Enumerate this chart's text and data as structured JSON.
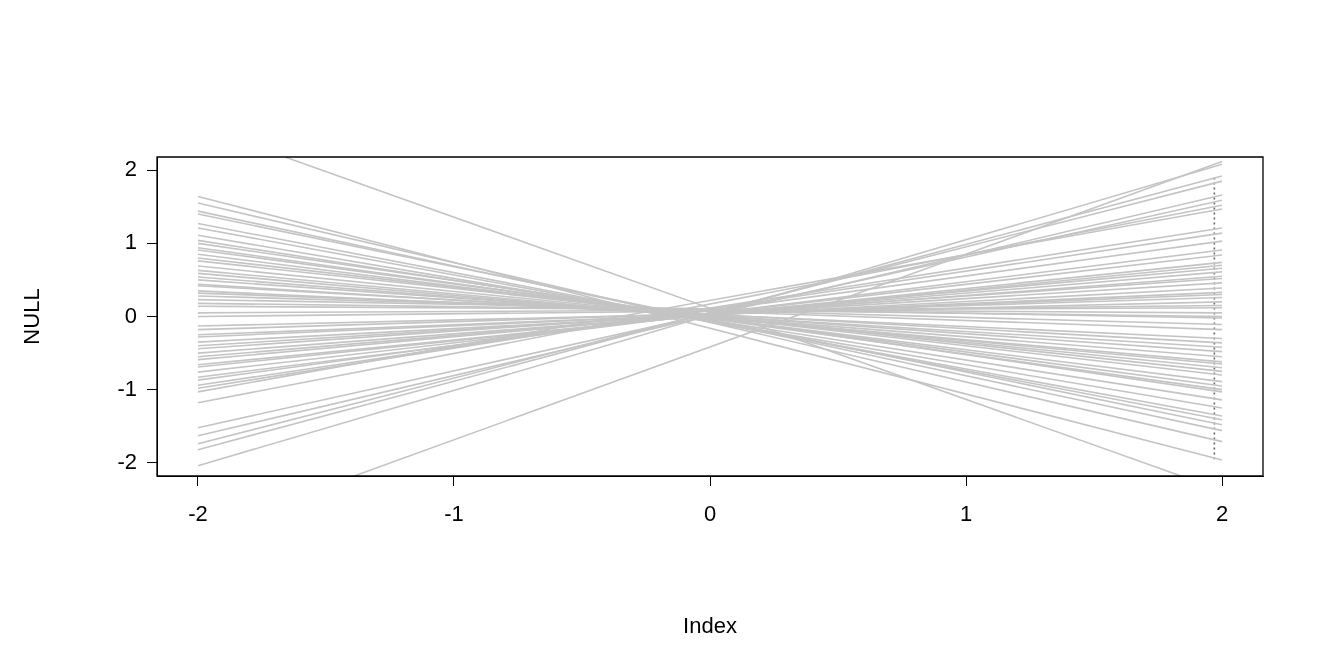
{
  "chart_data": {
    "type": "line",
    "xlabel": "Index",
    "ylabel": "NULL",
    "x": [
      -2,
      2
    ],
    "xlim": [
      -2.16,
      2.16
    ],
    "ylim": [
      -2.18,
      2.18
    ],
    "xticks": [
      -2,
      -1,
      0,
      1,
      2
    ],
    "yticks": [
      -2,
      -1,
      0,
      1,
      2
    ],
    "grid": false,
    "legend": false,
    "marker": "none",
    "line_style": "solid",
    "series": [
      {
        "color": "#c4c4c4",
        "values": [
          1.64,
          -1.96
        ]
      },
      {
        "color": "#c4c4c4",
        "values": [
          1.55,
          -1.71
        ]
      },
      {
        "color": "#c4c4c4",
        "values": [
          1.44,
          -1.56
        ]
      },
      {
        "color": "#c4c4c4",
        "values": [
          1.4,
          -1.48
        ]
      },
      {
        "color": "#c4c4c4",
        "values": [
          1.27,
          -1.41
        ]
      },
      {
        "color": "#c4c4c4",
        "values": [
          1.21,
          -1.36
        ]
      },
      {
        "color": "#c4c4c4",
        "values": [
          1.11,
          -1.25
        ]
      },
      {
        "color": "#c4c4c4",
        "values": [
          1.04,
          -1.14
        ]
      },
      {
        "color": "#c4c4c4",
        "values": [
          1.0,
          -1.03
        ]
      },
      {
        "color": "#c4c4c4",
        "values": [
          0.94,
          -1.0
        ]
      },
      {
        "color": "#c4c4c4",
        "values": [
          0.91,
          -0.95
        ]
      },
      {
        "color": "#c4c4c4",
        "values": [
          0.85,
          -0.89
        ]
      },
      {
        "color": "#c4c4c4",
        "values": [
          0.8,
          -0.8
        ]
      },
      {
        "color": "#c4c4c4",
        "values": [
          0.76,
          -0.75
        ]
      },
      {
        "color": "#c4c4c4",
        "values": [
          0.69,
          -0.7
        ]
      },
      {
        "color": "#c4c4c4",
        "values": [
          0.63,
          -0.65
        ]
      },
      {
        "color": "#c4c4c4",
        "values": [
          0.59,
          -0.62
        ]
      },
      {
        "color": "#c4c4c4",
        "values": [
          0.54,
          -0.55
        ]
      },
      {
        "color": "#c4c4c4",
        "values": [
          0.5,
          -0.48
        ]
      },
      {
        "color": "#c4c4c4",
        "values": [
          0.44,
          -0.42
        ]
      },
      {
        "color": "#c4c4c4",
        "values": [
          0.42,
          -0.36
        ]
      },
      {
        "color": "#c4c4c4",
        "values": [
          0.35,
          -0.3
        ]
      },
      {
        "color": "#c4c4c4",
        "values": [
          0.32,
          -0.18
        ]
      },
      {
        "color": "#c4c4c4",
        "values": [
          0.28,
          -0.11
        ]
      },
      {
        "color": "#c4c4c4",
        "values": [
          0.23,
          -0.02
        ]
      },
      {
        "color": "#c4c4c4",
        "values": [
          0.18,
          0.0
        ]
      },
      {
        "color": "#c4c4c4",
        "values": [
          0.14,
          0.05
        ]
      },
      {
        "color": "#c4c4c4",
        "values": [
          0.05,
          0.12
        ]
      },
      {
        "color": "#c4c4c4",
        "values": [
          0.0,
          0.15
        ]
      },
      {
        "color": "#c4c4c4",
        "values": [
          -0.13,
          0.2
        ]
      },
      {
        "color": "#c4c4c4",
        "values": [
          -0.18,
          0.26
        ]
      },
      {
        "color": "#c4c4c4",
        "values": [
          -0.25,
          0.3
        ]
      },
      {
        "color": "#c4c4c4",
        "values": [
          -0.28,
          0.33
        ]
      },
      {
        "color": "#c4c4c4",
        "values": [
          -0.35,
          0.39
        ]
      },
      {
        "color": "#c4c4c4",
        "values": [
          -0.4,
          0.46
        ]
      },
      {
        "color": "#c4c4c4",
        "values": [
          -0.44,
          0.52
        ]
      },
      {
        "color": "#c4c4c4",
        "values": [
          -0.5,
          0.55
        ]
      },
      {
        "color": "#c4c4c4",
        "values": [
          -0.55,
          0.61
        ]
      },
      {
        "color": "#c4c4c4",
        "values": [
          -0.59,
          0.66
        ]
      },
      {
        "color": "#c4c4c4",
        "values": [
          -0.66,
          0.7
        ]
      },
      {
        "color": "#c4c4c4",
        "values": [
          -0.69,
          0.74
        ]
      },
      {
        "color": "#c4c4c4",
        "values": [
          -0.76,
          0.84
        ]
      },
      {
        "color": "#c4c4c4",
        "values": [
          -0.83,
          0.91
        ]
      },
      {
        "color": "#c4c4c4",
        "values": [
          -0.87,
          1.03
        ]
      },
      {
        "color": "#c4c4c4",
        "values": [
          -0.94,
          1.14
        ]
      },
      {
        "color": "#c4c4c4",
        "values": [
          -0.98,
          1.21
        ]
      },
      {
        "color": "#c4c4c4",
        "values": [
          -1.03,
          1.47
        ]
      },
      {
        "color": "#c4c4c4",
        "values": [
          -1.18,
          1.52
        ]
      },
      {
        "color": "#c4c4c4",
        "values": [
          -1.52,
          1.59
        ]
      },
      {
        "color": "#c4c4c4",
        "values": [
          -1.63,
          1.66
        ]
      },
      {
        "color": "#c4c4c4",
        "values": [
          -1.74,
          1.85
        ]
      },
      {
        "color": "#c4c4c4",
        "values": [
          -1.82,
          1.92
        ]
      },
      {
        "color": "#c4c4c4",
        "values": [
          -2.04,
          2.08
        ]
      },
      {
        "color": "#c4c4c4",
        "x": [
          -1.66,
          1.84
        ],
        "values": [
          2.18,
          -2.18
        ]
      },
      {
        "color": "#c4c4c4",
        "x": [
          -1.39,
          2
        ],
        "values": [
          -2.18,
          2.12
        ]
      },
      {
        "color": "#666666",
        "x": [
          1.97,
          1.97
        ],
        "values": [
          1.9,
          -1.95
        ],
        "line_style": "dotted"
      }
    ]
  }
}
